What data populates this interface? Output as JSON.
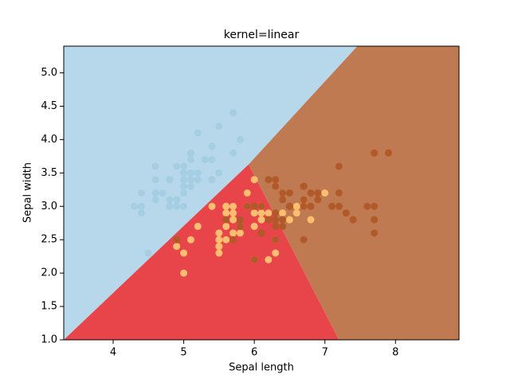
{
  "chart_data": {
    "type": "scatter",
    "title": "kernel=linear",
    "x_label": "Sepal length",
    "y_label": "Sepal width",
    "xlim": [
      3.3,
      8.9
    ],
    "ylim": [
      1.0,
      5.4
    ],
    "xticks": [
      4,
      5,
      6,
      7,
      8
    ],
    "yticks": [
      {
        "value": 1,
        "label": "1.0"
      },
      1.5,
      {
        "value": 2,
        "label": "2.0"
      },
      2.5,
      {
        "value": 3,
        "label": "3.0"
      },
      3.5,
      {
        "value": 4,
        "label": "4.0"
      },
      4.5,
      {
        "value": 5,
        "label": "5.0"
      }
    ],
    "regions": [
      {
        "color": "#b7d8ea",
        "x": [
          3.3,
          5.92,
          7.46,
          3.3
        ],
        "y": [
          1.0,
          3.63,
          5.4,
          5.4
        ]
      },
      {
        "color": "#e8454a",
        "x": [
          3.3,
          5.92,
          7.2
        ],
        "y": [
          1.0,
          3.63,
          1.0
        ]
      },
      {
        "color": "#c07a52",
        "x": [
          5.92,
          7.46,
          8.9,
          8.9,
          7.2
        ],
        "y": [
          3.63,
          5.4,
          5.4,
          1.0,
          1.0
        ]
      }
    ],
    "series": [
      {
        "color": "#a6cee3",
        "x": [
          5.1,
          4.9,
          4.7,
          4.6,
          5.0,
          5.4,
          4.6,
          5.0,
          4.4,
          4.9,
          5.4,
          4.8,
          4.8,
          4.3,
          5.8,
          5.7,
          5.4,
          5.1,
          5.7,
          5.1,
          5.4,
          5.1,
          4.6,
          5.1,
          4.8,
          5.0,
          5.0,
          5.2,
          5.2,
          4.7,
          4.8,
          5.4,
          5.2,
          5.5,
          4.9,
          5.0,
          5.5,
          4.9,
          4.4,
          5.1,
          5.0,
          4.5,
          4.4,
          5.0,
          5.1,
          4.8,
          5.1,
          4.6,
          5.3,
          5.0
        ],
        "values": [
          3.5,
          3.0,
          3.2,
          3.1,
          3.6,
          3.9,
          3.4,
          3.4,
          2.9,
          3.1,
          3.7,
          3.4,
          3.0,
          3.0,
          4.0,
          4.4,
          3.9,
          3.5,
          3.8,
          3.8,
          3.4,
          3.7,
          3.6,
          3.3,
          3.4,
          3.0,
          3.4,
          3.5,
          3.4,
          3.2,
          3.1,
          3.4,
          4.1,
          4.2,
          3.1,
          3.2,
          3.5,
          3.6,
          3.0,
          3.4,
          3.5,
          2.3,
          3.2,
          3.5,
          3.8,
          3.0,
          3.8,
          3.2,
          3.7,
          3.3
        ]
      },
      {
        "color": "#fdbf6f",
        "x": [
          7.0,
          6.4,
          6.9,
          5.5,
          6.5,
          5.7,
          6.3,
          4.9,
          6.6,
          5.2,
          5.0,
          5.9,
          6.0,
          6.1,
          5.6,
          6.7,
          5.6,
          5.8,
          6.2,
          5.6,
          5.9,
          6.1,
          6.3,
          6.1,
          6.4,
          6.6,
          6.8,
          6.7,
          6.0,
          5.7,
          5.5,
          5.5,
          5.8,
          6.0,
          5.4,
          6.0,
          6.7,
          6.3,
          5.6,
          5.5,
          5.5,
          6.1,
          5.8,
          5.0,
          5.6,
          5.7,
          5.7,
          6.2,
          5.1,
          5.7
        ],
        "values": [
          3.2,
          3.2,
          3.1,
          2.3,
          2.8,
          2.8,
          3.3,
          2.4,
          2.9,
          2.7,
          2.0,
          3.0,
          2.2,
          2.9,
          2.9,
          3.1,
          3.0,
          2.7,
          2.2,
          2.5,
          3.2,
          2.8,
          2.5,
          2.8,
          2.9,
          3.0,
          2.8,
          3.0,
          2.9,
          2.6,
          2.4,
          2.4,
          2.7,
          2.7,
          3.0,
          3.4,
          3.1,
          2.3,
          3.0,
          2.5,
          2.6,
          3.0,
          2.6,
          2.3,
          2.7,
          3.0,
          2.9,
          2.9,
          2.5,
          2.8
        ]
      },
      {
        "color": "#b15928",
        "x": [
          6.3,
          5.8,
          7.1,
          6.3,
          6.5,
          7.6,
          4.9,
          7.3,
          6.7,
          7.2,
          6.5,
          6.4,
          6.8,
          5.7,
          5.8,
          6.4,
          6.5,
          7.7,
          7.7,
          6.0,
          6.9,
          5.6,
          7.7,
          6.3,
          6.7,
          7.2,
          6.2,
          6.1,
          6.4,
          7.2,
          7.4,
          7.9,
          6.4,
          6.3,
          6.1,
          7.7,
          6.3,
          6.4,
          6.0,
          6.9,
          6.7,
          6.9,
          5.8,
          6.8,
          6.7,
          6.7,
          6.3,
          6.5,
          6.2,
          5.9
        ],
        "values": [
          3.3,
          2.7,
          3.0,
          2.9,
          3.0,
          3.0,
          2.5,
          2.9,
          2.5,
          3.6,
          3.2,
          2.7,
          3.0,
          2.5,
          2.8,
          3.2,
          3.0,
          3.8,
          2.6,
          2.2,
          3.2,
          2.8,
          2.8,
          2.7,
          3.3,
          3.2,
          2.8,
          3.0,
          2.8,
          3.0,
          2.8,
          3.8,
          2.8,
          2.8,
          2.6,
          3.0,
          3.4,
          3.1,
          3.0,
          3.1,
          3.1,
          3.1,
          2.7,
          3.2,
          3.3,
          3.0,
          2.5,
          3.0,
          3.4,
          3.0
        ]
      }
    ]
  }
}
